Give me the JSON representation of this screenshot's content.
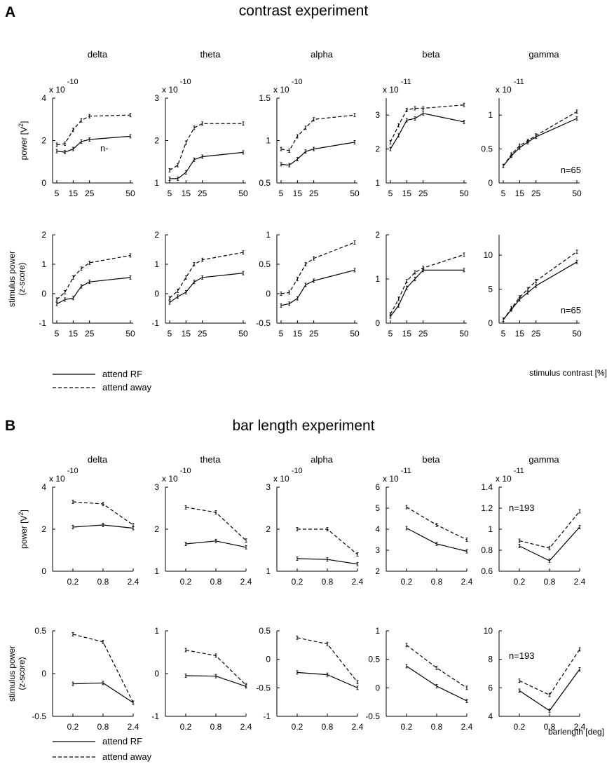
{
  "figure": {
    "sections": [
      {
        "letter": "A",
        "title": "contrast experiment",
        "x_values": [
          5,
          10,
          15,
          20,
          25,
          50
        ],
        "xticks": [
          "5",
          "15",
          "25",
          "50"
        ],
        "xlabel": "stimulus contrast [%]",
        "legend": [
          "attend RF",
          "attend away"
        ],
        "rows": [
          {
            "ylabel": [
              "power [V",
              "2",
              "]"
            ],
            "charts": [
              {
                "band": "delta",
                "exponent": "x 10",
                "exponent_power": "-10",
                "note": "n-",
                "ylim": [
                  0,
                  4
                ],
                "yticks": [
                  "0",
                  "2",
                  "4"
                ],
                "series": [
                  {
                    "values": [
                      1.5,
                      1.45,
                      1.6,
                      1.95,
                      2.05,
                      2.2
                    ]
                  },
                  {
                    "values": [
                      1.8,
                      1.85,
                      2.5,
                      2.95,
                      3.15,
                      3.2
                    ]
                  }
                ]
              },
              {
                "band": "theta",
                "exponent": "x 10",
                "exponent_power": "-10",
                "note": "",
                "ylim": [
                  1,
                  3
                ],
                "yticks": [
                  "1",
                  "2",
                  "3"
                ],
                "series": [
                  {
                    "values": [
                      1.1,
                      1.1,
                      1.25,
                      1.55,
                      1.62,
                      1.72
                    ]
                  },
                  {
                    "values": [
                      1.3,
                      1.42,
                      1.95,
                      2.3,
                      2.4,
                      2.4
                    ]
                  }
                ]
              },
              {
                "band": "alpha",
                "exponent": "x 10",
                "exponent_power": "-10",
                "note": "",
                "ylim": [
                  0.5,
                  1.5
                ],
                "yticks": [
                  "0.5",
                  "1",
                  "1.5"
                ],
                "series": [
                  {
                    "values": [
                      0.72,
                      0.71,
                      0.78,
                      0.87,
                      0.9,
                      0.98
                    ]
                  },
                  {
                    "values": [
                      0.9,
                      0.88,
                      1.05,
                      1.15,
                      1.25,
                      1.3
                    ]
                  }
                ]
              },
              {
                "band": "beta",
                "exponent": "x 10",
                "exponent_power": "-11",
                "note": "",
                "ylim": [
                  1,
                  3.5
                ],
                "yticks": [
                  "1",
                  "2",
                  "3"
                ],
                "series": [
                  {
                    "values": [
                      2.0,
                      2.4,
                      2.85,
                      2.9,
                      3.05,
                      2.8
                    ]
                  },
                  {
                    "values": [
                      2.2,
                      2.7,
                      3.15,
                      3.2,
                      3.2,
                      3.3
                    ]
                  }
                ]
              },
              {
                "band": "gamma",
                "exponent": "x 10",
                "exponent_power": "-11",
                "note": "n=65",
                "ylim": [
                  0,
                  1.25
                ],
                "yticks": [
                  "0",
                  "0.5",
                  "1"
                ],
                "series": [
                  {
                    "values": [
                      0.25,
                      0.4,
                      0.52,
                      0.6,
                      0.68,
                      0.95
                    ]
                  },
                  {
                    "values": [
                      0.25,
                      0.42,
                      0.55,
                      0.62,
                      0.7,
                      1.05
                    ]
                  }
                ]
              }
            ]
          },
          {
            "ylabel": [
              "stimulus power",
              "(z-score)"
            ],
            "charts": [
              {
                "band": "delta",
                "exponent": "",
                "exponent_power": "",
                "note": "",
                "ylim": [
                  -1,
                  2
                ],
                "yticks": [
                  "-1",
                  "0",
                  "1",
                  "2"
                ],
                "series": [
                  {
                    "values": [
                      -0.35,
                      -0.2,
                      -0.15,
                      0.25,
                      0.4,
                      0.55
                    ]
                  },
                  {
                    "values": [
                      -0.2,
                      0.05,
                      0.55,
                      0.85,
                      1.05,
                      1.3
                    ]
                  }
                ]
              },
              {
                "band": "theta",
                "exponent": "",
                "exponent_power": "",
                "note": "",
                "ylim": [
                  -1,
                  2
                ],
                "yticks": [
                  "-1",
                  "0",
                  "1",
                  "2"
                ],
                "series": [
                  {
                    "values": [
                      -0.3,
                      -0.1,
                      0.05,
                      0.4,
                      0.55,
                      0.7
                    ]
                  },
                  {
                    "values": [
                      -0.15,
                      0.1,
                      0.55,
                      1.0,
                      1.15,
                      1.4
                    ]
                  }
                ]
              },
              {
                "band": "alpha",
                "exponent": "",
                "exponent_power": "",
                "note": "",
                "ylim": [
                  -0.5,
                  1
                ],
                "yticks": [
                  "-0.5",
                  "0",
                  "0.5",
                  "1"
                ],
                "series": [
                  {
                    "values": [
                      -0.2,
                      -0.17,
                      -0.08,
                      0.15,
                      0.22,
                      0.4
                    ]
                  },
                  {
                    "values": [
                      0.0,
                      0.02,
                      0.25,
                      0.5,
                      0.6,
                      0.87
                    ]
                  }
                ]
              },
              {
                "band": "beta",
                "exponent": "",
                "exponent_power": "",
                "note": "",
                "ylim": [
                  0,
                  2
                ],
                "yticks": [
                  "0",
                  "1",
                  "2"
                ],
                "series": [
                  {
                    "values": [
                      0.15,
                      0.4,
                      0.8,
                      1.0,
                      1.2,
                      1.2
                    ]
                  },
                  {
                    "values": [
                      0.2,
                      0.55,
                      0.95,
                      1.15,
                      1.25,
                      1.55
                    ]
                  }
                ]
              },
              {
                "band": "gamma",
                "exponent": "",
                "exponent_power": "",
                "note": "n=65",
                "ylim": [
                  0,
                  13
                ],
                "yticks": [
                  "0",
                  "5",
                  "10"
                ],
                "series": [
                  {
                    "values": [
                      0.5,
                      2.0,
                      3.5,
                      4.5,
                      5.5,
                      9.0
                    ]
                  },
                  {
                    "values": [
                      0.5,
                      2.2,
                      3.8,
                      5.0,
                      6.2,
                      10.5
                    ]
                  }
                ]
              }
            ]
          }
        ]
      },
      {
        "letter": "B",
        "title": "bar length experiment",
        "x_values": [
          0.2,
          0.8,
          2.4
        ],
        "xticks": [
          "0.2",
          "0.8",
          "2.4"
        ],
        "xlabel": "barlength [deg]",
        "legend": [
          "attend RF",
          "attend away"
        ],
        "rows": [
          {
            "ylabel": [
              "power [V",
              "2",
              "]"
            ],
            "charts": [
              {
                "band": "delta",
                "exponent": "x 10",
                "exponent_power": "-10",
                "note": "",
                "ylim": [
                  0,
                  4
                ],
                "yticks": [
                  "0",
                  "2",
                  "4"
                ],
                "series": [
                  {
                    "values": [
                      2.1,
                      2.2,
                      2.05
                    ]
                  },
                  {
                    "values": [
                      3.3,
                      3.2,
                      2.2
                    ]
                  }
                ]
              },
              {
                "band": "theta",
                "exponent": "x 10",
                "exponent_power": "-10",
                "note": "",
                "ylim": [
                  1,
                  3
                ],
                "yticks": [
                  "1",
                  "2",
                  "3"
                ],
                "series": [
                  {
                    "values": [
                      1.65,
                      1.72,
                      1.57
                    ]
                  },
                  {
                    "values": [
                      2.52,
                      2.4,
                      1.73
                    ]
                  }
                ]
              },
              {
                "band": "alpha",
                "exponent": "x 10",
                "exponent_power": "-10",
                "note": "",
                "ylim": [
                  1,
                  3
                ],
                "yticks": [
                  "1",
                  "2",
                  "3"
                ],
                "series": [
                  {
                    "values": [
                      1.3,
                      1.28,
                      1.17
                    ]
                  },
                  {
                    "values": [
                      2.0,
                      2.0,
                      1.4
                    ]
                  }
                ]
              },
              {
                "band": "beta",
                "exponent": "x 10",
                "exponent_power": "-11",
                "note": "",
                "ylim": [
                  2,
                  6
                ],
                "yticks": [
                  "2",
                  "3",
                  "4",
                  "5",
                  "6"
                ],
                "series": [
                  {
                    "values": [
                      4.05,
                      3.3,
                      2.95
                    ]
                  },
                  {
                    "values": [
                      5.05,
                      4.2,
                      3.5
                    ]
                  }
                ]
              },
              {
                "band": "gamma",
                "exponent": "x 10",
                "exponent_power": "-11",
                "note": "n=193",
                "ylim": [
                  0.6,
                  1.4
                ],
                "yticks": [
                  "0.6",
                  "0.8",
                  "1",
                  "1.2",
                  "1.4"
                ],
                "series": [
                  {
                    "values": [
                      0.84,
                      0.7,
                      1.02
                    ]
                  },
                  {
                    "values": [
                      0.89,
                      0.82,
                      1.17
                    ]
                  }
                ]
              }
            ]
          },
          {
            "ylabel": [
              "stimulus power",
              "(z-score)"
            ],
            "charts": [
              {
                "band": "delta",
                "exponent": "",
                "exponent_power": "",
                "note": "",
                "ylim": [
                  -0.5,
                  0.5
                ],
                "yticks": [
                  "-0.5",
                  "0",
                  "0.5"
                ],
                "series": [
                  {
                    "values": [
                      -0.12,
                      -0.11,
                      -0.34
                    ]
                  },
                  {
                    "values": [
                      0.46,
                      0.37,
                      -0.34
                    ]
                  }
                ]
              },
              {
                "band": "theta",
                "exponent": "",
                "exponent_power": "",
                "note": "",
                "ylim": [
                  -1,
                  1
                ],
                "yticks": [
                  "-1",
                  "0",
                  "1"
                ],
                "series": [
                  {
                    "values": [
                      -0.05,
                      -0.06,
                      -0.3
                    ]
                  },
                  {
                    "values": [
                      0.55,
                      0.42,
                      -0.27
                    ]
                  }
                ]
              },
              {
                "band": "alpha",
                "exponent": "",
                "exponent_power": "",
                "note": "",
                "ylim": [
                  -1,
                  0.5
                ],
                "yticks": [
                  "-1",
                  "-0.5",
                  "0",
                  "0.5"
                ],
                "series": [
                  {
                    "values": [
                      -0.23,
                      -0.27,
                      -0.5
                    ]
                  },
                  {
                    "values": [
                      0.38,
                      0.27,
                      -0.4
                    ]
                  }
                ]
              },
              {
                "band": "beta",
                "exponent": "",
                "exponent_power": "",
                "note": "",
                "ylim": [
                  -0.5,
                  1
                ],
                "yticks": [
                  "-0.5",
                  "0",
                  "0.5",
                  "1"
                ],
                "series": [
                  {
                    "values": [
                      0.38,
                      0.03,
                      -0.23
                    ]
                  },
                  {
                    "values": [
                      0.75,
                      0.35,
                      0.0
                    ]
                  }
                ]
              },
              {
                "band": "gamma",
                "exponent": "",
                "exponent_power": "",
                "note": "n=193",
                "ylim": [
                  4,
                  10
                ],
                "yticks": [
                  "4",
                  "6",
                  "8",
                  "10"
                ],
                "series": [
                  {
                    "values": [
                      5.8,
                      4.4,
                      7.3
                    ]
                  },
                  {
                    "values": [
                      6.5,
                      5.5,
                      8.7
                    ]
                  }
                ]
              }
            ]
          }
        ]
      }
    ]
  },
  "chart_data": [
    {
      "type": "line",
      "title": "contrast experiment",
      "panel": "A",
      "row": "power",
      "x": [
        5,
        10,
        15,
        20,
        25,
        50
      ],
      "xlabel": "stimulus contrast [%]",
      "series_names": [
        "attend RF",
        "attend away"
      ],
      "charts": [
        "delta",
        "theta",
        "alpha",
        "beta",
        "gamma"
      ]
    },
    {
      "type": "line",
      "title": "bar length experiment",
      "panel": "B",
      "x": [
        0.2,
        0.8,
        2.4
      ],
      "xlabel": "barlength [deg]",
      "series_names": [
        "attend RF",
        "attend away"
      ],
      "charts": [
        "delta",
        "theta",
        "alpha",
        "beta",
        "gamma"
      ]
    }
  ]
}
